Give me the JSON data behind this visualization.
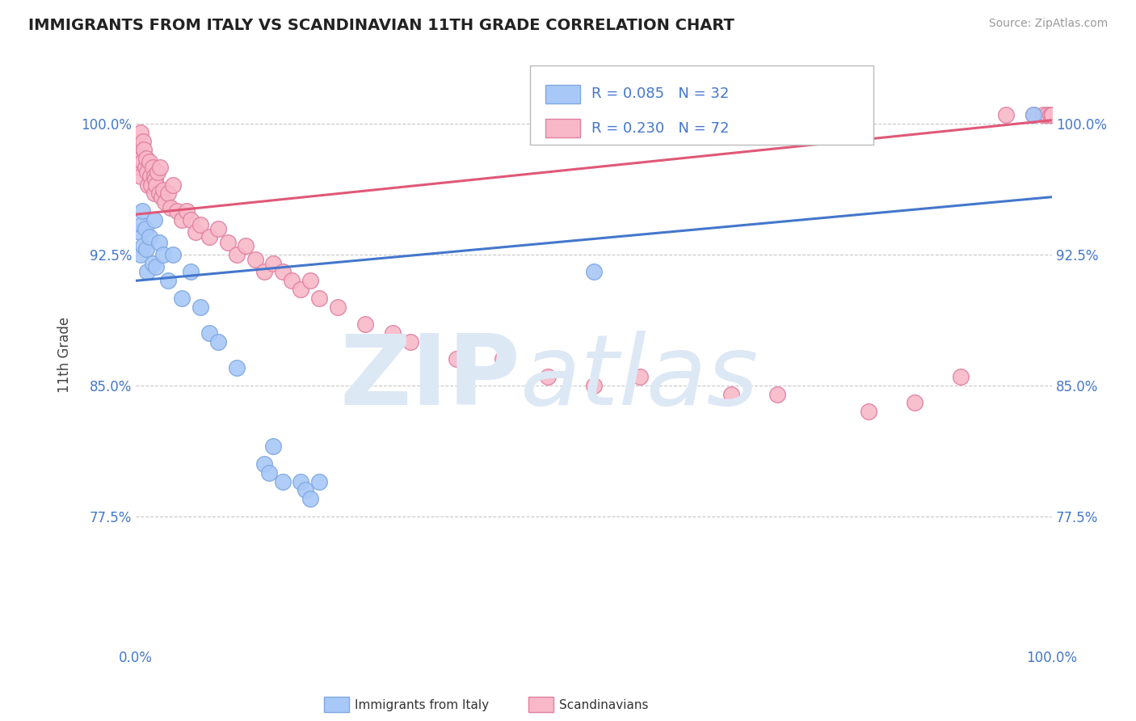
{
  "title": "IMMIGRANTS FROM ITALY VS SCANDINAVIAN 11TH GRADE CORRELATION CHART",
  "source_text": "Source: ZipAtlas.com",
  "ylabel": "11th Grade",
  "xlim": [
    0.0,
    100.0
  ],
  "ylim": [
    70.0,
    103.5
  ],
  "yticks": [
    77.5,
    85.0,
    92.5,
    100.0
  ],
  "xticklabels": [
    "0.0%",
    "100.0%"
  ],
  "yticklabels": [
    "77.5%",
    "85.0%",
    "92.5%",
    "100.0%"
  ],
  "grid_color": "#c8c8c8",
  "background_color": "#ffffff",
  "italy_color": "#a8c8f8",
  "italy_edge_color": "#80a8e0",
  "scand_color": "#f8b8c8",
  "scand_edge_color": "#e080a0",
  "italy_line_color": "#4477cc",
  "scand_line_color": "#e05878",
  "italy_R": 0.085,
  "italy_N": 32,
  "scand_R": 0.23,
  "scand_N": 72,
  "italy_line_x0": 0.0,
  "italy_line_y0": 91.0,
  "italy_line_x1": 100.0,
  "italy_line_y1": 95.8,
  "scand_line_x0": 0.0,
  "scand_line_y0": 94.8,
  "scand_line_x1": 100.0,
  "scand_line_y1": 100.2,
  "italy_x": [
    0.4,
    0.5,
    0.6,
    0.7,
    0.8,
    1.0,
    1.1,
    1.2,
    1.5,
    1.8,
    2.0,
    2.2,
    2.5,
    3.0,
    3.5,
    4.0,
    5.0,
    6.0,
    7.0,
    8.0,
    9.0,
    11.0,
    14.0,
    14.5,
    15.0,
    16.0,
    18.0,
    18.5,
    19.0,
    20.0,
    50.0,
    98.0
  ],
  "italy_y": [
    93.8,
    92.5,
    94.2,
    95.0,
    93.0,
    94.0,
    92.8,
    91.5,
    93.5,
    92.0,
    94.5,
    91.8,
    93.2,
    92.5,
    91.0,
    92.5,
    90.0,
    91.5,
    89.5,
    88.0,
    87.5,
    86.0,
    80.5,
    80.0,
    81.5,
    79.5,
    79.5,
    79.0,
    78.5,
    79.5,
    91.5,
    100.5
  ],
  "scand_x": [
    0.2,
    0.3,
    0.5,
    0.5,
    0.6,
    0.7,
    0.8,
    0.9,
    1.0,
    1.1,
    1.2,
    1.3,
    1.5,
    1.6,
    1.7,
    1.8,
    2.0,
    2.0,
    2.1,
    2.2,
    2.4,
    2.5,
    2.6,
    2.8,
    3.0,
    3.2,
    3.5,
    3.8,
    4.0,
    4.5,
    5.0,
    5.5,
    6.0,
    6.5,
    7.0,
    8.0,
    9.0,
    10.0,
    11.0,
    12.0,
    13.0,
    14.0,
    15.0,
    16.0,
    17.0,
    18.0,
    19.0,
    20.0,
    22.0,
    25.0,
    28.0,
    30.0,
    35.0,
    40.0,
    45.0,
    50.0,
    55.0,
    65.0,
    70.0,
    80.0,
    85.0,
    90.0,
    95.0,
    98.0,
    99.0,
    99.5,
    99.8,
    100.0,
    100.0,
    100.0,
    100.0,
    100.0
  ],
  "scand_y": [
    97.5,
    98.5,
    99.5,
    97.0,
    98.0,
    97.8,
    99.0,
    98.5,
    97.5,
    98.0,
    97.2,
    96.5,
    97.8,
    97.0,
    96.5,
    97.5,
    96.0,
    97.0,
    96.8,
    96.5,
    97.2,
    96.0,
    97.5,
    95.8,
    96.2,
    95.5,
    96.0,
    95.2,
    96.5,
    95.0,
    94.5,
    95.0,
    94.5,
    93.8,
    94.2,
    93.5,
    94.0,
    93.2,
    92.5,
    93.0,
    92.2,
    91.5,
    92.0,
    91.5,
    91.0,
    90.5,
    91.0,
    90.0,
    89.5,
    88.5,
    88.0,
    87.5,
    86.5,
    86.5,
    85.5,
    85.0,
    85.5,
    84.5,
    84.5,
    83.5,
    84.0,
    85.5,
    100.5,
    100.5,
    100.5,
    100.5,
    100.5,
    100.5,
    100.5,
    100.5,
    100.5,
    100.5
  ]
}
